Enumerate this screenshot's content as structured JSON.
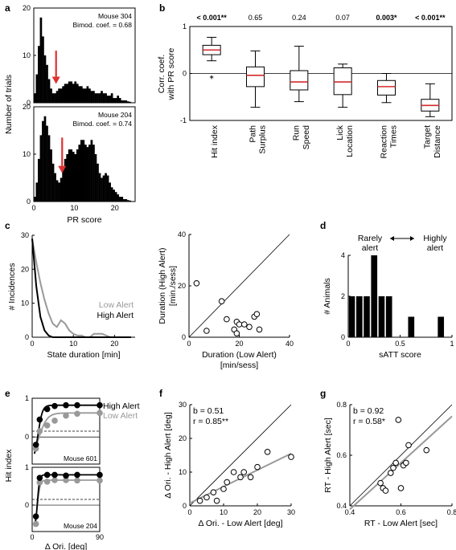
{
  "panel_labels": [
    "a",
    "b",
    "c",
    "d",
    "e",
    "f",
    "g"
  ],
  "colors": {
    "black": "#000000",
    "gray": "#999999",
    "red": "#e03030",
    "median_red": "#d22b2b"
  },
  "chart_data": [
    {
      "id": "a",
      "type": "bar",
      "xlabel": "PR score",
      "ylabel": "Number of trials",
      "xlim": [
        0,
        25
      ],
      "xticks": [
        "0",
        "10",
        "20"
      ],
      "subplots": [
        {
          "mouse": "Mouse 304",
          "bimod": "Bimod. coef. = 0.68",
          "ylim": [
            0,
            20
          ],
          "yticks": [
            "0",
            "10",
            "20"
          ],
          "arrow_x": 5.5,
          "x": [
            0.5,
            1,
            1.5,
            2,
            2.5,
            3,
            3.5,
            4,
            4.5,
            5,
            5.5,
            6,
            6.5,
            7,
            7.5,
            8,
            8.5,
            9,
            9.5,
            10,
            10.5,
            11,
            11.5,
            12,
            12.5,
            13,
            13.5,
            14,
            14.5,
            15,
            15.5,
            16,
            16.5,
            17,
            17.5,
            18,
            18.5,
            19,
            19.5,
            20,
            20.5,
            21,
            21.5,
            22,
            22.5,
            23,
            23.5,
            24
          ],
          "values": [
            2,
            6,
            12,
            18,
            14,
            10,
            8,
            5,
            3,
            2,
            2,
            2.5,
            3,
            3,
            3.5,
            4,
            4,
            4.5,
            4.5,
            4,
            4.5,
            4,
            3.5,
            3.5,
            3,
            3,
            3.5,
            3,
            2.5,
            2.5,
            2,
            2,
            2,
            2.5,
            2,
            2,
            1.5,
            1.5,
            2,
            1,
            1,
            1.5,
            1,
            0.5,
            0.5,
            0.5,
            0.3,
            0.2
          ]
        },
        {
          "mouse": "Mouse 204",
          "bimod": "Bimod. coef. = 0.74",
          "ylim": [
            0,
            20
          ],
          "yticks": [
            "0",
            "10",
            "20"
          ],
          "arrow_x": 7,
          "x": [
            0.5,
            1,
            1.5,
            2,
            2.5,
            3,
            3.5,
            4,
            4.5,
            5,
            5.5,
            6,
            6.5,
            7,
            7.5,
            8,
            8.5,
            9,
            9.5,
            10,
            10.5,
            11,
            11.5,
            12,
            12.5,
            13,
            13.5,
            14,
            14.5,
            15,
            15.5,
            16,
            16.5,
            17,
            17.5,
            18,
            18.5,
            19,
            19.5,
            20,
            20.5,
            21,
            21.5,
            22,
            22.5,
            23,
            23.5,
            24
          ],
          "values": [
            1,
            4,
            9,
            14,
            17,
            18,
            16,
            14,
            11,
            8,
            6,
            4.5,
            4,
            5,
            7,
            9,
            10,
            11,
            11,
            10.5,
            10,
            11,
            12,
            13,
            13,
            12,
            11.5,
            12,
            13,
            12,
            10,
            8,
            6,
            5,
            5.5,
            6,
            5.5,
            4,
            3,
            2.5,
            2,
            1.5,
            1,
            1,
            0.5,
            0.5,
            0.3,
            0.2
          ]
        }
      ]
    },
    {
      "id": "b",
      "type": "box",
      "ylabel": "Corr. coef. with PR score",
      "ylim": [
        -1,
        1
      ],
      "yticks": [
        "-1",
        "0",
        "1"
      ],
      "categories": [
        "Hit index",
        "Path Surplus",
        "Run Speed",
        "Lick Location",
        "Reaction Times",
        "Target Distance"
      ],
      "category_lines": [
        [
          "Hit index"
        ],
        [
          "Path",
          "Surplus"
        ],
        [
          "Run",
          "Speed"
        ],
        [
          "Lick",
          "Location"
        ],
        [
          "Reaction",
          "Times"
        ],
        [
          "Target",
          "Distance"
        ]
      ],
      "pvalues": [
        "< 0.001**",
        "0.65",
        "0.24",
        "0.07",
        "0.003*",
        "< 0.001**"
      ],
      "pvalue_bold": [
        true,
        false,
        false,
        false,
        true,
        true
      ],
      "boxes": [
        {
          "whislo": 0.27,
          "q1": 0.4,
          "med": 0.5,
          "q3": 0.6,
          "whishi": 0.77,
          "fliers": [
            -0.08
          ]
        },
        {
          "whislo": -0.72,
          "q1": -0.28,
          "med": -0.04,
          "q3": 0.14,
          "whishi": 0.48
        },
        {
          "whislo": -0.6,
          "q1": -0.35,
          "med": -0.18,
          "q3": 0.06,
          "whishi": 0.58
        },
        {
          "whislo": -0.72,
          "q1": -0.45,
          "med": -0.18,
          "q3": 0.12,
          "whishi": 0.2
        },
        {
          "whislo": -0.62,
          "q1": -0.46,
          "med": -0.28,
          "q3": -0.15,
          "whishi": 0.0
        },
        {
          "whislo": -0.92,
          "q1": -0.8,
          "med": -0.68,
          "q3": -0.55,
          "whishi": -0.22
        }
      ]
    },
    {
      "id": "c1",
      "type": "line",
      "xlabel": "State duration [min]",
      "ylabel": "# Incidences",
      "xlim": [
        0,
        25
      ],
      "ylim": [
        0,
        30
      ],
      "xticks": [
        "0",
        "10",
        "20"
      ],
      "yticks": [
        "0",
        "10",
        "20",
        "30"
      ],
      "series": [
        {
          "name": "Low Alert",
          "color": "#999999",
          "x": [
            0,
            1,
            2,
            3,
            4,
            5,
            6,
            7,
            8,
            9,
            10,
            11,
            12,
            13,
            14,
            15,
            16,
            17,
            18,
            19,
            20,
            21,
            22,
            23,
            24
          ],
          "y": [
            29,
            22,
            16,
            11,
            7,
            4,
            3,
            5,
            4,
            2,
            1,
            0.5,
            0.5,
            0,
            0,
            1,
            1,
            1,
            0.5,
            0,
            0,
            0,
            0,
            0,
            0
          ]
        },
        {
          "name": "High Alert",
          "color": "#000000",
          "x": [
            0,
            1,
            2,
            3,
            4,
            5,
            6,
            7,
            8,
            10,
            15,
            20,
            24
          ],
          "y": [
            29,
            15,
            6,
            2,
            0.5,
            0,
            0,
            0,
            0,
            0,
            0,
            0,
            0
          ]
        }
      ]
    },
    {
      "id": "c2",
      "type": "scatter",
      "xlabel": "Duration (Low Alert) [min/sess]",
      "ylabel": "Duration (High Alert) [min./sess]",
      "xlabel_lines": [
        "Duration (Low Alert)",
        "[min/sess]"
      ],
      "ylabel_lines": [
        "Duration (High Alert)",
        "[min./sess]"
      ],
      "xlim": [
        0,
        40
      ],
      "ylim": [
        0,
        40
      ],
      "xticks": [
        "0",
        "20",
        "40"
      ],
      "yticks": [
        "0",
        "20",
        "40"
      ],
      "x": [
        3,
        7,
        13,
        15,
        18,
        19,
        19,
        20,
        22,
        24,
        26,
        27,
        28
      ],
      "y": [
        21,
        2.5,
        14,
        7,
        3,
        6,
        1.5,
        5,
        5,
        4,
        8,
        9,
        3
      ]
    },
    {
      "id": "d",
      "type": "bar",
      "xlabel": "sATT score",
      "ylabel": "# Animals",
      "xlim": [
        0,
        1
      ],
      "ylim": [
        0,
        4
      ],
      "xticks": [
        "0",
        "0.5",
        "1"
      ],
      "yticks": [
        "0",
        "2",
        "4"
      ],
      "label_left": [
        "Rarely",
        "alert"
      ],
      "label_right": [
        "Highly",
        "alert"
      ],
      "bins": [
        [
          0,
          0.071
        ],
        [
          0.071,
          0.143
        ],
        [
          0.143,
          0.214
        ],
        [
          0.214,
          0.286
        ],
        [
          0.286,
          0.357
        ],
        [
          0.357,
          0.429
        ],
        [
          0.571,
          0.643
        ],
        [
          0.857,
          0.929
        ]
      ],
      "values": [
        2,
        2,
        2,
        4,
        2,
        2,
        1,
        1
      ]
    },
    {
      "id": "e",
      "type": "line",
      "xlabel": "Δ Ori. [deg]",
      "ylabel": "Hit index",
      "xlim": [
        0,
        90
      ],
      "xticks": [
        "0",
        "90"
      ],
      "yticks": [
        "0",
        "1"
      ],
      "legend": [
        "High Alert",
        "Low Alert"
      ],
      "subplots": [
        {
          "mouse": "Mouse 601",
          "ylim": [
            -0.7,
            1.0
          ],
          "high_pts": {
            "x": [
              5,
              10,
              20,
              30,
              45,
              60,
              90
            ],
            "y": [
              -0.2,
              0.45,
              0.72,
              0.8,
              0.82,
              0.82,
              0.82
            ]
          },
          "low_pts": {
            "x": [
              5,
              10,
              20,
              30,
              45,
              60,
              90
            ],
            "y": [
              -0.3,
              0.15,
              0.3,
              0.42,
              0.55,
              0.6,
              0.62
            ]
          },
          "dashed": 0.15
        },
        {
          "mouse": "Mouse 204",
          "ylim": [
            -0.7,
            1.0
          ],
          "high_pts": {
            "x": [
              5,
              10,
              20,
              30,
              45,
              60,
              90
            ],
            "y": [
              -0.3,
              0.72,
              0.8,
              0.8,
              0.78,
              0.8,
              0.8
            ]
          },
          "low_pts": {
            "x": [
              5,
              10,
              20,
              30,
              45,
              60,
              90
            ],
            "y": [
              -0.5,
              0.6,
              0.62,
              0.66,
              0.66,
              0.65,
              0.65
            ]
          },
          "dashed": 0.15
        }
      ]
    },
    {
      "id": "f",
      "type": "scatter",
      "xlabel": "Δ Ori. - Low Alert [deg]",
      "ylabel": "Δ Ori. - High Alert [deg]",
      "xlim": [
        0,
        30
      ],
      "ylim": [
        0,
        30
      ],
      "xticks": [
        "0",
        "10",
        "20",
        "30"
      ],
      "yticks": [
        "0",
        "10",
        "20",
        "30"
      ],
      "stat_b": "b = 0.51",
      "stat_r": "r = 0.85**",
      "x": [
        3,
        5,
        7,
        8,
        10,
        11,
        13,
        15,
        16,
        18,
        20,
        23,
        30
      ],
      "y": [
        1.5,
        2.5,
        4,
        1.5,
        5,
        7,
        10,
        8.5,
        10,
        8.5,
        11.5,
        16,
        14.5
      ],
      "fit": {
        "x": [
          0,
          30
        ],
        "y": [
          0.8,
          15.5
        ]
      }
    },
    {
      "id": "g",
      "type": "scatter",
      "xlabel": "RT - Low Alert [sec]",
      "ylabel": "RT - High Alert [sec]",
      "xlim": [
        0.4,
        0.8
      ],
      "ylim": [
        0.4,
        0.8
      ],
      "xticks": [
        "0.4",
        "0.6",
        "0.8"
      ],
      "yticks": [
        "0.4",
        "0.6",
        "0.8"
      ],
      "stat_b": "b = 0.92",
      "stat_r": "r = 0.58*",
      "x": [
        0.52,
        0.53,
        0.54,
        0.56,
        0.57,
        0.58,
        0.59,
        0.6,
        0.61,
        0.62,
        0.63,
        0.7
      ],
      "y": [
        0.49,
        0.47,
        0.46,
        0.53,
        0.55,
        0.57,
        0.74,
        0.47,
        0.56,
        0.57,
        0.64,
        0.62
      ],
      "fit": {
        "x": [
          0.4,
          0.8
        ],
        "y": [
          0.386,
          0.754
        ]
      }
    }
  ]
}
